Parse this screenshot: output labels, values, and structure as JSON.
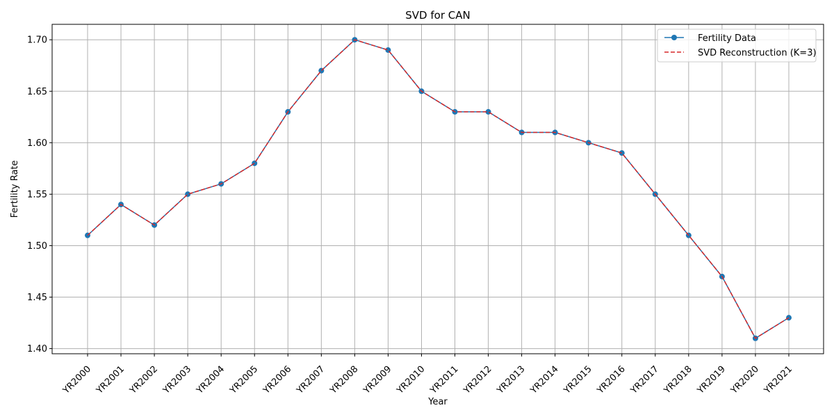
{
  "chart_data": {
    "type": "line",
    "title": "SVD for CAN",
    "xlabel": "Year",
    "ylabel": "Fertility Rate",
    "categories": [
      "YR2000",
      "YR2001",
      "YR2002",
      "YR2003",
      "YR2004",
      "YR2005",
      "YR2006",
      "YR2007",
      "YR2008",
      "YR2009",
      "YR2010",
      "YR2011",
      "YR2012",
      "YR2013",
      "YR2014",
      "YR2015",
      "YR2016",
      "YR2017",
      "YR2018",
      "YR2019",
      "YR2020",
      "YR2021"
    ],
    "ylim": [
      1.395,
      1.715
    ],
    "yticks": [
      "1.40",
      "1.45",
      "1.50",
      "1.55",
      "1.60",
      "1.65",
      "1.70"
    ],
    "grid": true,
    "legend_position": "top-right",
    "series": [
      {
        "name": "Fertility Data",
        "color": "#1f77b4",
        "style": "solid-with-markers",
        "values": [
          1.51,
          1.54,
          1.52,
          1.55,
          1.56,
          1.58,
          1.63,
          1.67,
          1.7,
          1.69,
          1.65,
          1.63,
          1.63,
          1.61,
          1.61,
          1.6,
          1.59,
          1.55,
          1.51,
          1.47,
          1.41,
          1.43
        ]
      },
      {
        "name": "SVD Reconstruction (K=3)",
        "color": "#d62728",
        "style": "dashed",
        "values": [
          1.51,
          1.54,
          1.52,
          1.55,
          1.56,
          1.58,
          1.63,
          1.67,
          1.7,
          1.69,
          1.65,
          1.63,
          1.63,
          1.61,
          1.61,
          1.6,
          1.59,
          1.55,
          1.51,
          1.47,
          1.41,
          1.43
        ]
      }
    ]
  }
}
